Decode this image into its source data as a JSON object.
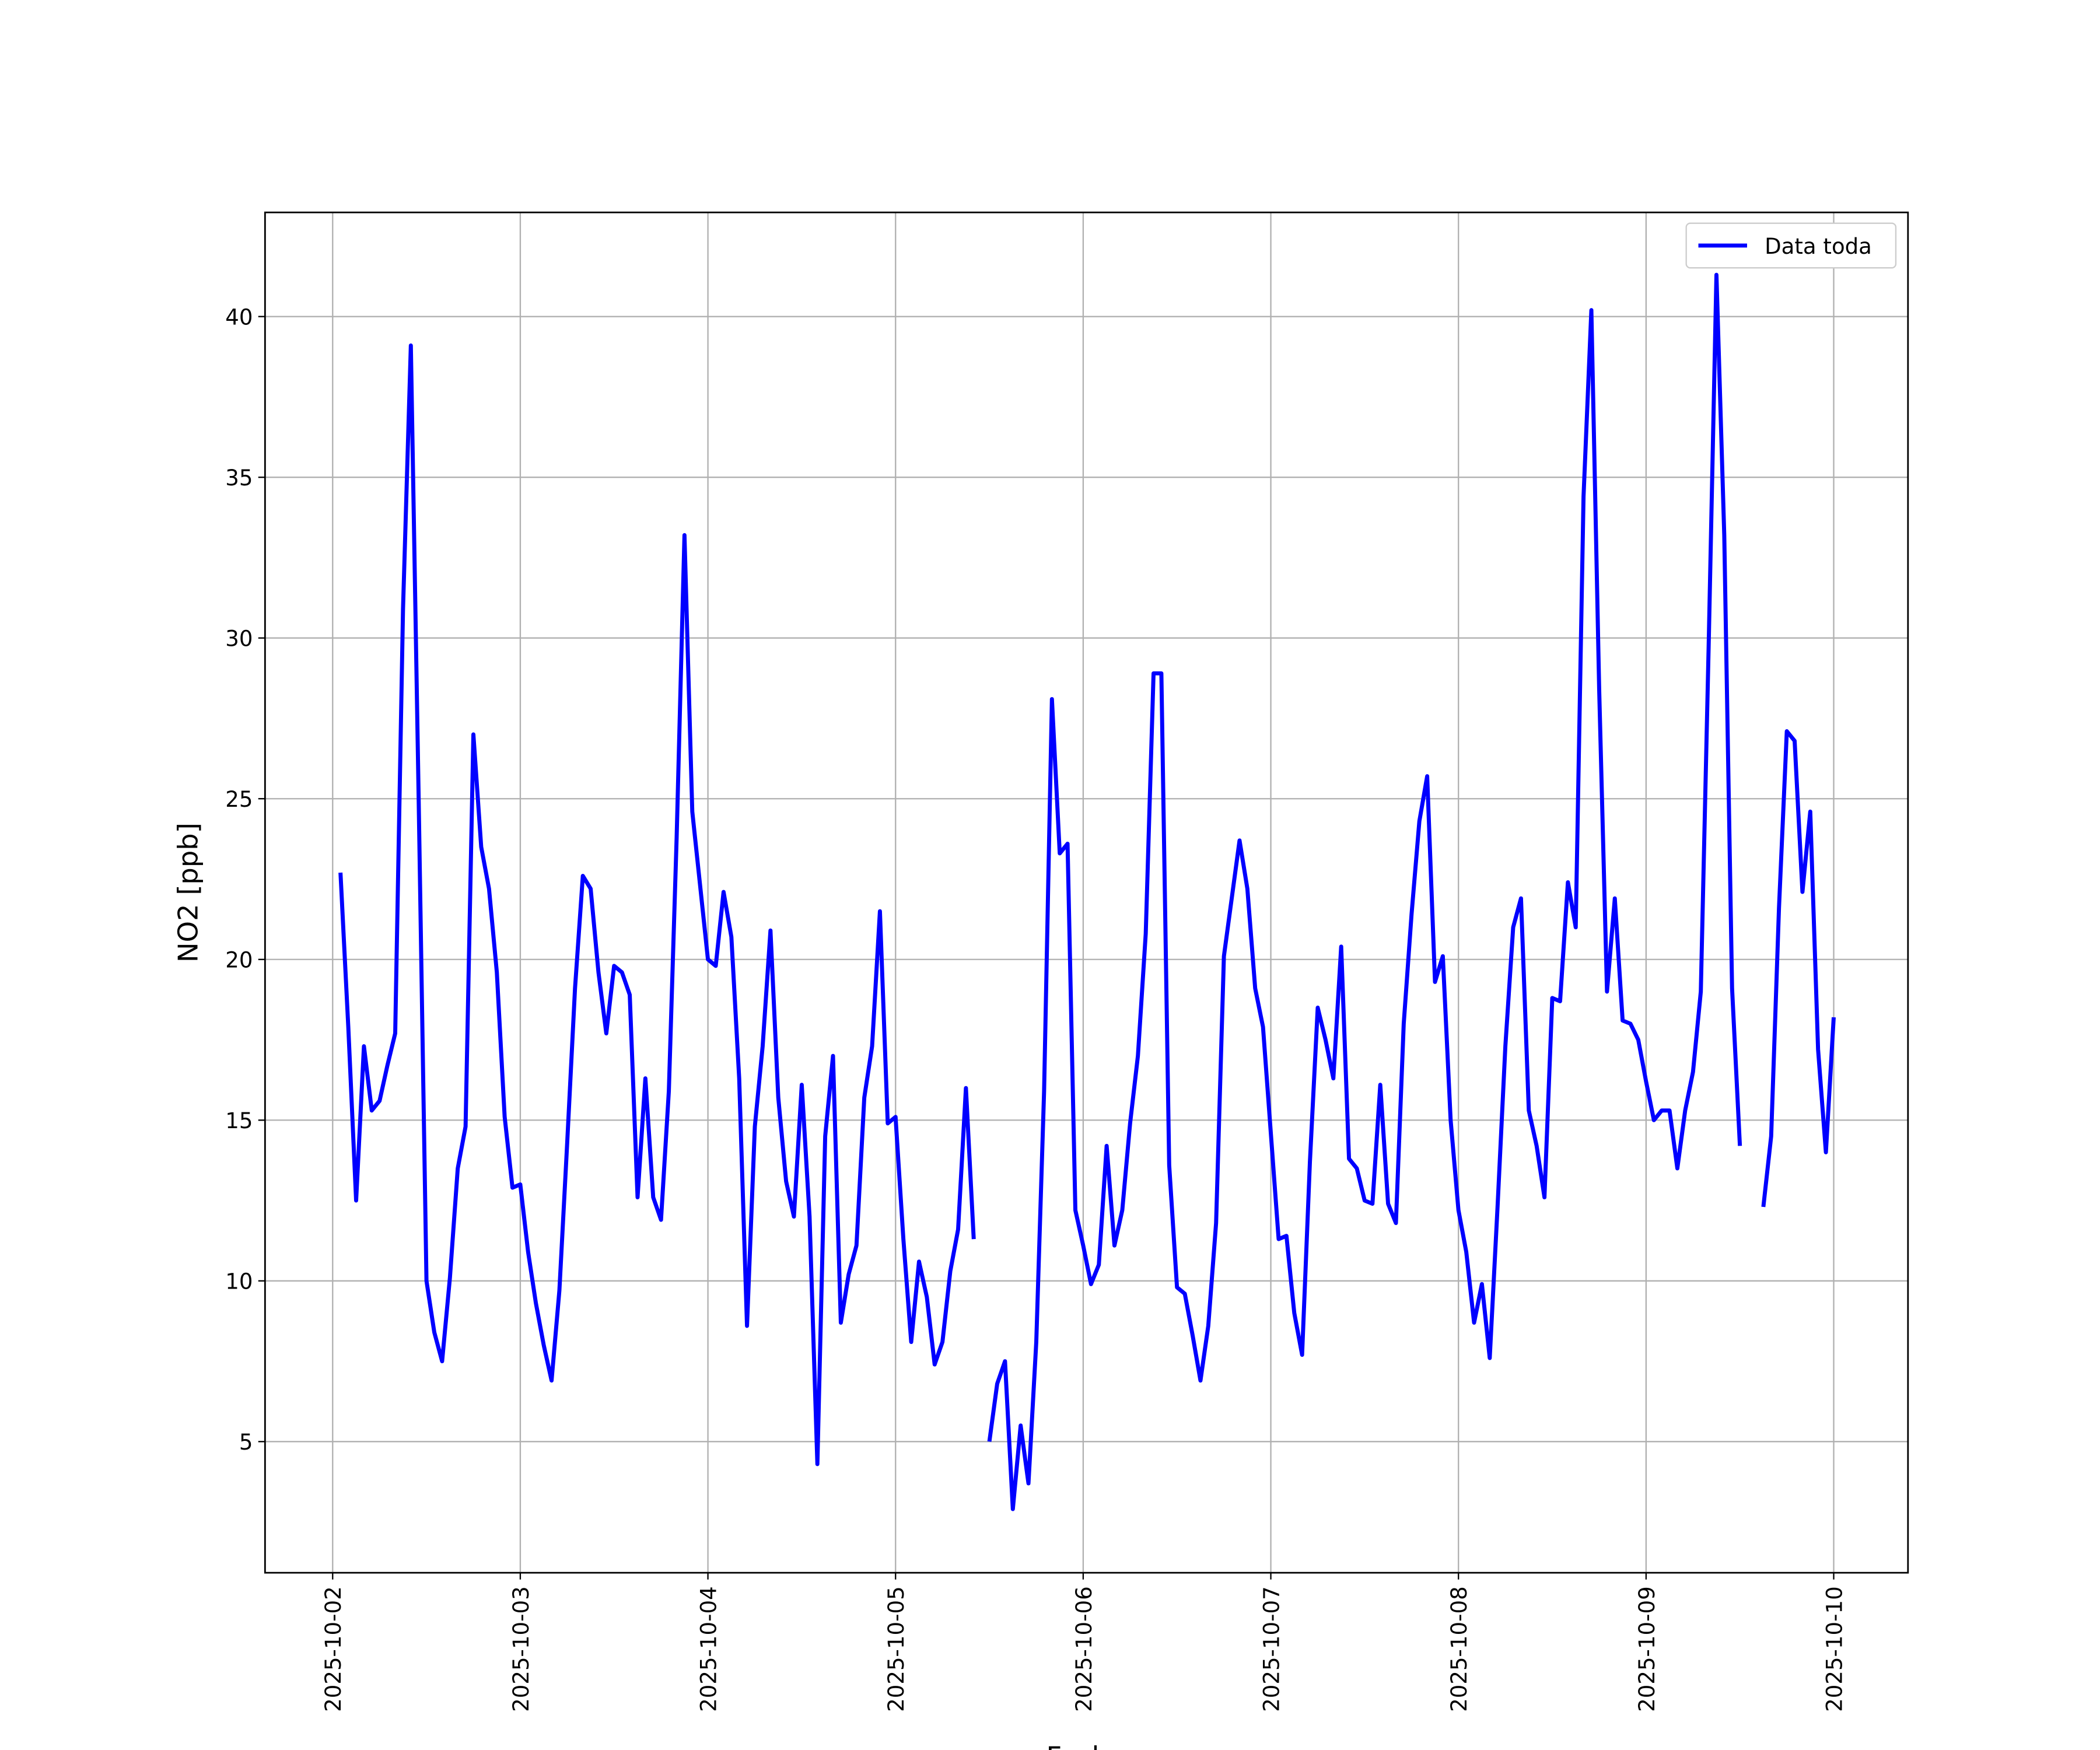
{
  "chart_data": {
    "type": "line",
    "xlabel": "Fecha",
    "ylabel": "NO2 [ppb]",
    "x": [
      1,
      2,
      3,
      4,
      5,
      6,
      7,
      8,
      9,
      10,
      11,
      12,
      13,
      14,
      15,
      16,
      17,
      18,
      19,
      20,
      21,
      22,
      23,
      24,
      25,
      26,
      27,
      28,
      29,
      30,
      31,
      32,
      33,
      34,
      35,
      36,
      37,
      38,
      39,
      40,
      41,
      42,
      43,
      44,
      45,
      46,
      47,
      48,
      49,
      50,
      51,
      52,
      53,
      54,
      55,
      56,
      57,
      58,
      59,
      60,
      61,
      62,
      63,
      64,
      65,
      66,
      67,
      68,
      69,
      70,
      71,
      72,
      73,
      74,
      75,
      76,
      77,
      78,
      79,
      80,
      81,
      82,
      83,
      84,
      85,
      86,
      87,
      88,
      89,
      90,
      91,
      92,
      93,
      94,
      95,
      96,
      97,
      98,
      99,
      100,
      101,
      102,
      103,
      104,
      105,
      106,
      107,
      108,
      109,
      110,
      111,
      112,
      113,
      114,
      115,
      116,
      117,
      118,
      119,
      120,
      121,
      122,
      123,
      124,
      125,
      126,
      127,
      128,
      129,
      130,
      131,
      132,
      133,
      134,
      135,
      136,
      137,
      138,
      139,
      140,
      141,
      142,
      143,
      144,
      145,
      146,
      147,
      148,
      149,
      150,
      151,
      152,
      153,
      154,
      155,
      156,
      157,
      158,
      159,
      160,
      161,
      162,
      163,
      164,
      165,
      166,
      167,
      168,
      169,
      170,
      171,
      172,
      173,
      174,
      175,
      176,
      177,
      178,
      179,
      180,
      181,
      182,
      183,
      184,
      185,
      186,
      187,
      188,
      189,
      190,
      191,
      192
    ],
    "series": [
      {
        "name": "Data toda",
        "color": "#0000ff",
        "values": [
          22.7,
          17.9,
          12.5,
          17.3,
          15.3,
          15.6,
          16.7,
          17.7,
          30.9,
          39.1,
          25.0,
          10.0,
          8.4,
          7.5,
          10.1,
          13.5,
          14.8,
          27.0,
          23.5,
          22.2,
          19.6,
          15.1,
          12.9,
          13.0,
          10.9,
          9.3,
          8.0,
          6.9,
          9.7,
          14.3,
          19.1,
          22.6,
          22.2,
          19.6,
          17.7,
          19.8,
          19.6,
          18.9,
          12.6,
          16.3,
          12.6,
          11.9,
          15.9,
          23.8,
          33.2,
          24.6,
          22.3,
          20.0,
          19.8,
          22.1,
          20.7,
          16.3,
          8.6,
          14.8,
          17.3,
          20.9,
          15.7,
          13.1,
          12.0,
          16.1,
          12.0,
          4.3,
          14.5,
          17.0,
          8.7,
          10.2,
          11.1,
          15.7,
          17.3,
          21.5,
          14.9,
          15.1,
          11.3,
          8.1,
          10.6,
          9.5,
          7.4,
          8.1,
          10.3,
          11.6,
          16.0,
          11.3,
          null,
          5.0,
          6.8,
          7.5,
          2.9,
          5.5,
          3.7,
          8.1,
          15.9,
          28.1,
          23.3,
          23.6,
          12.2,
          11.1,
          9.9,
          10.5,
          14.2,
          11.1,
          12.2,
          14.9,
          17.0,
          20.8,
          28.9,
          28.9,
          13.6,
          9.8,
          9.6,
          8.3,
          6.9,
          8.6,
          11.8,
          20.1,
          21.9,
          23.7,
          22.2,
          19.1,
          17.9,
          14.6,
          11.3,
          11.4,
          9.0,
          7.7,
          13.7,
          18.5,
          17.5,
          16.3,
          20.4,
          13.8,
          13.5,
          12.5,
          12.4,
          16.1,
          12.4,
          11.8,
          18.0,
          21.4,
          24.3,
          25.7,
          19.3,
          20.1,
          15.0,
          12.2,
          10.9,
          8.7,
          9.9,
          7.6,
          12.3,
          17.3,
          21.0,
          21.9,
          15.3,
          14.2,
          12.6,
          18.8,
          18.7,
          22.4,
          21.0,
          34.4,
          40.2,
          28.4,
          19.0,
          21.9,
          18.1,
          18.0,
          17.5,
          16.2,
          15.0,
          15.3,
          15.3,
          13.5,
          15.3,
          16.5,
          19.0,
          29.7,
          41.3,
          33.2,
          19.1,
          14.2,
          null,
          null,
          12.3,
          14.5,
          21.6,
          27.1,
          26.8,
          22.1,
          24.6,
          17.2,
          14.0,
          18.2
        ]
      }
    ],
    "xlim": [
      -8.65,
      201.5
    ],
    "xticks": [
      {
        "value": 0,
        "label": "2025-10-02"
      },
      {
        "value": 24,
        "label": "2025-10-03"
      },
      {
        "value": 48,
        "label": "2025-10-04"
      },
      {
        "value": 72,
        "label": "2025-10-05"
      },
      {
        "value": 96,
        "label": "2025-10-06"
      },
      {
        "value": 120,
        "label": "2025-10-07"
      },
      {
        "value": 144,
        "label": "2025-10-08"
      },
      {
        "value": 168,
        "label": "2025-10-09"
      },
      {
        "value": 192,
        "label": "2025-10-10"
      }
    ],
    "ylim": [
      0.92,
      43.24
    ],
    "yticks": [
      5,
      10,
      15,
      20,
      25,
      30,
      35,
      40
    ],
    "grid": true,
    "legend": "upper right"
  }
}
